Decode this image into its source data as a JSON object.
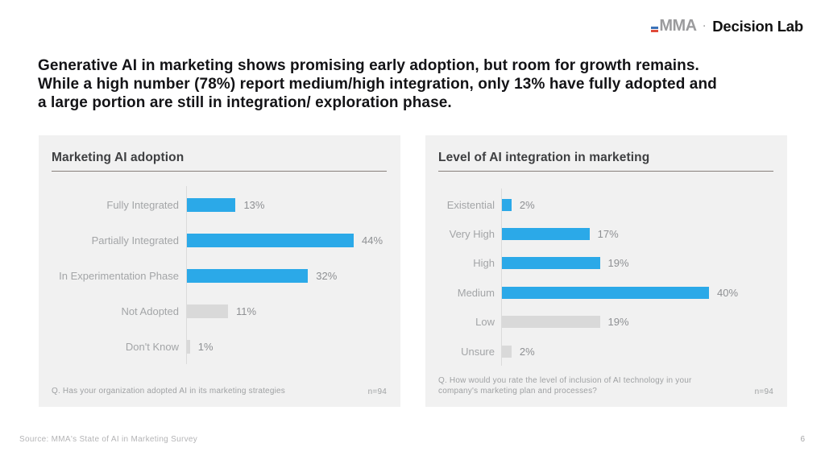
{
  "logo": {
    "mma": "MMA",
    "separator": "·",
    "brand": "Decision Lab"
  },
  "headline": {
    "lines": [
      "Generative AI in marketing shows promising early adoption, but room for growth remains.",
      "While a high number (78%) report medium/high integration, only 13% have fully adopted and",
      "a large portion are still in integration/ exploration phase."
    ]
  },
  "colors": {
    "accent_blue": "#2BA9E8",
    "muted_gray": "#D9D9D9",
    "panel_background": "#F1F1F1",
    "logo_gray": "#9B9B9D",
    "logo_blue": "#3B72B8",
    "logo_red": "#E04B3A"
  },
  "chart_data": [
    {
      "type": "bar",
      "orientation": "horizontal",
      "title": "Marketing AI adoption",
      "categories": [
        "Fully Integrated",
        "Partially Integrated",
        "In Experimentation Phase",
        "Not Adopted",
        "Don't Know"
      ],
      "values": [
        13,
        44,
        32,
        11,
        1
      ],
      "value_labels": [
        "13%",
        "44%",
        "32%",
        "11%",
        "1%"
      ],
      "bar_colors": [
        "#2BA9E8",
        "#2BA9E8",
        "#2BA9E8",
        "#D9D9D9",
        "#D9D9D9"
      ],
      "xlim": [
        0,
        50
      ],
      "grid": false,
      "value_axis_visible": false,
      "footnote": "Q. Has your organization adopted AI in its marketing strategies",
      "sample_size": "n=94"
    },
    {
      "type": "bar",
      "orientation": "horizontal",
      "title": "Level of AI integration in marketing",
      "categories": [
        "Existential",
        "Very High",
        "High",
        "Medium",
        "Low",
        "Unsure"
      ],
      "values": [
        2,
        17,
        19,
        40,
        19,
        2
      ],
      "value_labels": [
        "2%",
        "17%",
        "19%",
        "40%",
        "19%",
        "2%"
      ],
      "bar_colors": [
        "#2BA9E8",
        "#2BA9E8",
        "#2BA9E8",
        "#2BA9E8",
        "#D9D9D9",
        "#D9D9D9"
      ],
      "xlim": [
        0,
        45
      ],
      "grid": false,
      "value_axis_visible": false,
      "footnote": "Q. How would you rate the level of inclusion of AI technology in your company's marketing plan and processes?",
      "sample_size": "n=94"
    }
  ],
  "footer": {
    "source": "Source: MMA's State of AI in Marketing Survey",
    "page_number": "6"
  }
}
